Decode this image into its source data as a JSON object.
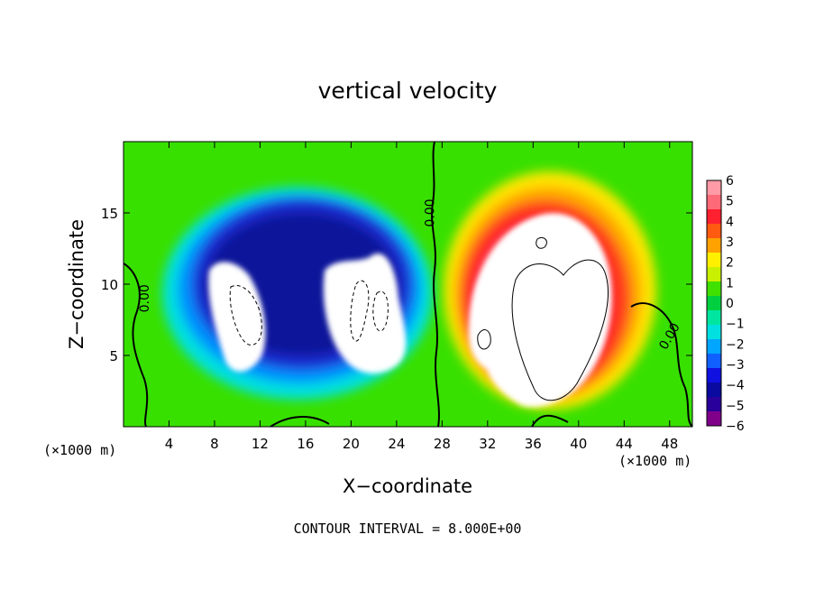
{
  "chart_data": {
    "type": "heatmap",
    "title": "vertical velocity",
    "xlabel": "X−coordinate",
    "ylabel": "Z−coordinate",
    "x_unit": "(×1000 m)",
    "y_unit": "(×1000 m)",
    "xlim": [
      0,
      50
    ],
    "ylim": [
      0,
      20
    ],
    "x_ticks": [
      4,
      8,
      12,
      16,
      20,
      24,
      28,
      32,
      36,
      40,
      44,
      48
    ],
    "y_ticks": [
      5,
      10,
      15
    ],
    "colorbar": {
      "min": -6,
      "max": 6,
      "tick_labels": [
        "6",
        "5",
        "4",
        "3",
        "2",
        "1",
        "0",
        "−1",
        "−2",
        "−3",
        "−4",
        "−5",
        "−6"
      ],
      "tick_values": [
        6,
        5,
        4,
        3,
        2,
        1,
        0,
        -1,
        -2,
        -3,
        -4,
        -5,
        -6
      ]
    },
    "contour_labels": [
      "0.00",
      "0.00",
      "0.00"
    ],
    "footer": "CONTOUR INTERVAL = 8.000E+00",
    "features": [
      {
        "kind": "updraft",
        "x_center": 37,
        "z_center": 8,
        "peak": 6
      },
      {
        "kind": "downdraft",
        "x_center": 11,
        "z_center": 8,
        "peak": -6
      },
      {
        "kind": "downdraft",
        "x_center": 21,
        "z_center": 8,
        "peak": -6
      }
    ],
    "grid": false
  }
}
